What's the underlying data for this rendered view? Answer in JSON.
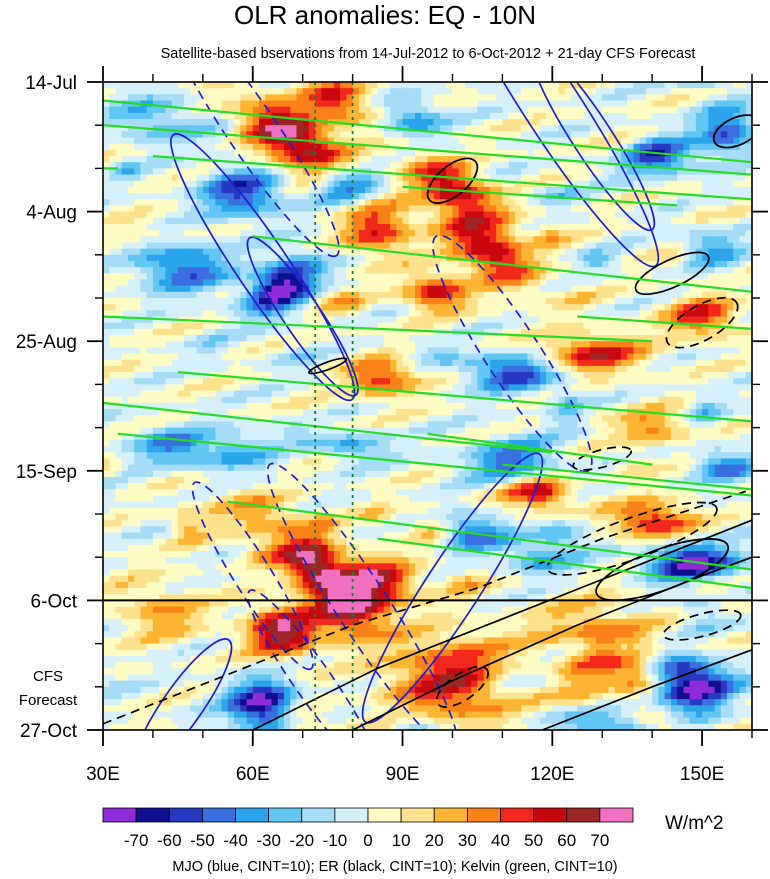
{
  "chart_data": {
    "type": "heatmap",
    "title": "OLR anomalies: EQ - 10N",
    "subtitle": "Satellite-based bservations from 14-Jul-2012 to 6-Oct-2012 + 21-day CFS Forecast",
    "x_axis": {
      "range": [
        30,
        160
      ],
      "ticks": [
        30,
        60,
        90,
        120,
        150
      ],
      "tick_labels": [
        "30E",
        "60E",
        "90E",
        "120E",
        "150E"
      ]
    },
    "y_axis": {
      "range_days": [
        0,
        105
      ],
      "ticks": [
        0,
        21,
        42,
        63,
        84,
        105
      ],
      "tick_labels": [
        "14-Jul",
        "4-Aug",
        "25-Aug",
        "15-Sep",
        "6-Oct",
        "27-Oct"
      ],
      "inverted": true
    },
    "forecast_start_day": 84,
    "forecast_label": [
      "CFS",
      "Forecast"
    ],
    "reference_longitudes": [
      72.5,
      80
    ],
    "colorbar": {
      "levels": [
        "-70",
        "-60",
        "-50",
        "-40",
        "-30",
        "-20",
        "-10",
        "0",
        "10",
        "20",
        "30",
        "40",
        "50",
        "60",
        "70"
      ],
      "colors": [
        "#8f2bd8",
        "#0f0f8f",
        "#2838c0",
        "#3a6fe0",
        "#2aa5ec",
        "#62c6f4",
        "#a6dcf5",
        "#d6f0fa",
        "#fdfbc2",
        "#fde18c",
        "#fcb432",
        "#fa8018",
        "#f2281c",
        "#c8080e",
        "#9c2626",
        "#f070c0"
      ],
      "units": "W/m^2"
    },
    "footnote": "MJO (blue, CINT=10); ER (black, CINT=10); Kelvin (green, CINT=10)"
  }
}
